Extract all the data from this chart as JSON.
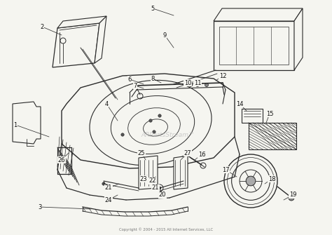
{
  "bg_color": "#f5f5f0",
  "line_color": "#2a2a2a",
  "label_color": "#111111",
  "watermark": "ARPartsStream™",
  "copyright": "Copyright © 2004 - 2015 All Internet Services, LLC",
  "figsize": [
    4.74,
    3.35
  ],
  "dpi": 100,
  "labels": [
    [
      1,
      22,
      178,
      70,
      195
    ],
    [
      2,
      60,
      38,
      88,
      50
    ],
    [
      3,
      57,
      295,
      130,
      298
    ],
    [
      4,
      152,
      148,
      168,
      172
    ],
    [
      5,
      218,
      12,
      248,
      22
    ],
    [
      6,
      185,
      113,
      205,
      120
    ],
    [
      7,
      193,
      122,
      205,
      126
    ],
    [
      8,
      218,
      112,
      230,
      118
    ],
    [
      9,
      235,
      50,
      248,
      68
    ],
    [
      10,
      268,
      118,
      275,
      122
    ],
    [
      11,
      282,
      118,
      288,
      122
    ],
    [
      12,
      318,
      108,
      308,
      115
    ],
    [
      14,
      342,
      148,
      352,
      158
    ],
    [
      15,
      385,
      162,
      380,
      175
    ],
    [
      16,
      288,
      220,
      278,
      228
    ],
    [
      17,
      322,
      242,
      338,
      252
    ],
    [
      18,
      388,
      255,
      378,
      262
    ],
    [
      19,
      418,
      278,
      405,
      285
    ],
    [
      20,
      232,
      278,
      228,
      268
    ],
    [
      21,
      155,
      268,
      170,
      262
    ],
    [
      21,
      222,
      268,
      218,
      262
    ],
    [
      22,
      218,
      258,
      222,
      252
    ],
    [
      23,
      205,
      255,
      210,
      250
    ],
    [
      24,
      155,
      285,
      168,
      278
    ],
    [
      25,
      202,
      218,
      208,
      228
    ],
    [
      26,
      88,
      228,
      98,
      218
    ],
    [
      27,
      268,
      218,
      258,
      228
    ]
  ]
}
